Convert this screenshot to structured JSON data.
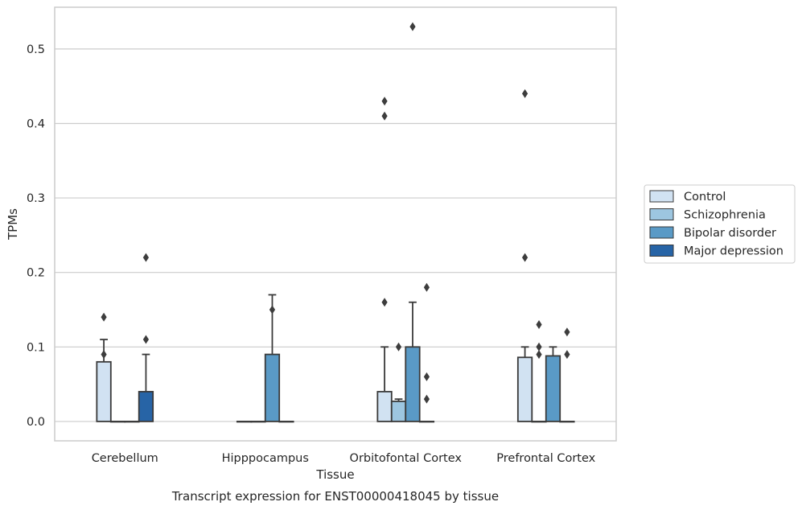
{
  "chart_data": {
    "type": "bar",
    "xlabel": "Tissue",
    "ylabel": "TPMs",
    "caption": "Transcript expression for ENST00000418045 by tissue",
    "ylim": [
      -0.026,
      0.556
    ],
    "yticks": [
      "0.0",
      "0.1",
      "0.2",
      "0.3",
      "0.4",
      "0.5"
    ],
    "grid": true,
    "legend_position": "right",
    "categories": [
      "Cerebellum",
      "Hipppocampus",
      "Orbitofontal Cortex",
      "Prefrontal Cortex"
    ],
    "series": [
      {
        "name": "Control",
        "color": "#d1e2f2",
        "values": [
          0.08,
          0.0,
          0.04,
          0.086
        ],
        "whisker_high": [
          0.11,
          0.0,
          0.1,
          0.1
        ],
        "outliers": [
          [
            0.09,
            0.14
          ],
          [],
          [
            0.16,
            0.41,
            0.43
          ],
          [
            0.22,
            0.44
          ]
        ]
      },
      {
        "name": "Schizophrenia",
        "color": "#9dc6e0",
        "values": [
          0.0,
          0.0,
          0.027,
          0.0
        ],
        "whisker_high": [
          0.0,
          0.0,
          0.03,
          0.0
        ],
        "outliers": [
          [],
          [],
          [
            0.1
          ],
          [
            0.09,
            0.1,
            0.13
          ]
        ]
      },
      {
        "name": "Bipolar disorder",
        "color": "#5a9ac6",
        "values": [
          0.0,
          0.09,
          0.1,
          0.088
        ],
        "whisker_high": [
          0.0,
          0.17,
          0.16,
          0.1
        ],
        "outliers": [
          [],
          [
            0.15
          ],
          [
            0.53
          ],
          []
        ]
      },
      {
        "name": "Major depression",
        "color": "#2764a6",
        "values": [
          0.04,
          0.0,
          0.0,
          0.0
        ],
        "whisker_high": [
          0.09,
          0.0,
          0.0,
          0.0
        ],
        "outliers": [
          [
            0.11,
            0.22
          ],
          [],
          [
            0.03,
            0.06,
            0.18
          ],
          [
            0.09,
            0.12
          ]
        ]
      }
    ]
  }
}
